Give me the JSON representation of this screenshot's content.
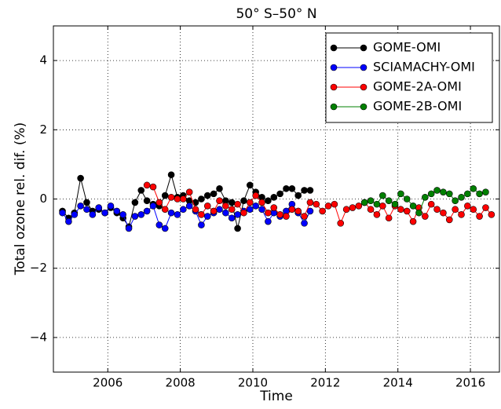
{
  "chart_data": {
    "type": "line",
    "title": "50° S–50° N",
    "xlabel": "Time",
    "ylabel": "Total ozone rel. dif. (%)",
    "xlim": [
      2004.5,
      2016.8
    ],
    "ylim": [
      -5,
      5
    ],
    "xticks": [
      2006,
      2008,
      2010,
      2012,
      2014,
      2016
    ],
    "yticks": [
      {
        "value": -4,
        "label": "−4"
      },
      {
        "value": -2,
        "label": "−2"
      },
      0,
      2,
      4
    ],
    "grid": true,
    "legend": "upper right",
    "series": [
      {
        "name": "GOME-OMI",
        "color": "#000000",
        "x": [
          2004.75,
          2004.92,
          2005.08,
          2005.25,
          2005.42,
          2005.58,
          2005.75,
          2005.92,
          2006.08,
          2006.25,
          2006.42,
          2006.58,
          2006.75,
          2006.92,
          2007.08,
          2007.25,
          2007.42,
          2007.58,
          2007.75,
          2007.92,
          2008.08,
          2008.25,
          2008.42,
          2008.58,
          2008.75,
          2008.92,
          2009.08,
          2009.25,
          2009.42,
          2009.58,
          2009.75,
          2009.92,
          2010.08,
          2010.25,
          2010.42,
          2010.58,
          2010.75,
          2010.92,
          2011.08,
          2011.25,
          2011.42,
          2011.58
        ],
        "values": [
          -0.35,
          -0.55,
          -0.4,
          0.6,
          -0.1,
          -0.35,
          -0.3,
          -0.4,
          -0.25,
          -0.4,
          -0.55,
          -0.8,
          -0.1,
          0.25,
          -0.05,
          -0.15,
          -0.2,
          0.1,
          0.7,
          0.05,
          0.1,
          -0.05,
          -0.1,
          0.0,
          0.1,
          0.15,
          0.3,
          -0.05,
          -0.1,
          -0.85,
          -0.05,
          0.4,
          0.2,
          0.05,
          -0.05,
          0.05,
          0.15,
          0.3,
          0.3,
          0.1,
          0.25,
          0.25
        ]
      },
      {
        "name": "SCIAMACHY-OMI",
        "color": "#0000ff",
        "x": [
          2004.75,
          2004.92,
          2005.08,
          2005.25,
          2005.42,
          2005.58,
          2005.75,
          2005.92,
          2006.08,
          2006.25,
          2006.42,
          2006.58,
          2006.75,
          2006.92,
          2007.08,
          2007.25,
          2007.42,
          2007.58,
          2007.75,
          2007.92,
          2008.08,
          2008.25,
          2008.42,
          2008.58,
          2008.75,
          2008.92,
          2009.08,
          2009.25,
          2009.42,
          2009.58,
          2009.75,
          2009.92,
          2010.08,
          2010.25,
          2010.42,
          2010.58,
          2010.75,
          2010.92,
          2011.08,
          2011.25,
          2011.42,
          2011.58
        ],
        "values": [
          -0.4,
          -0.65,
          -0.45,
          -0.2,
          -0.3,
          -0.45,
          -0.25,
          -0.4,
          -0.2,
          -0.35,
          -0.45,
          -0.85,
          -0.5,
          -0.45,
          -0.35,
          -0.2,
          -0.75,
          -0.85,
          -0.4,
          -0.45,
          -0.3,
          -0.2,
          -0.35,
          -0.75,
          -0.5,
          -0.4,
          -0.3,
          -0.4,
          -0.55,
          -0.45,
          -0.35,
          -0.3,
          -0.2,
          -0.3,
          -0.65,
          -0.4,
          -0.5,
          -0.35,
          -0.15,
          -0.4,
          -0.7,
          -0.35
        ]
      },
      {
        "name": "GOME-2A-OMI",
        "color": "#ff0000",
        "x": [
          2007.08,
          2007.25,
          2007.42,
          2007.58,
          2007.75,
          2007.92,
          2008.08,
          2008.25,
          2008.42,
          2008.58,
          2008.75,
          2008.92,
          2009.08,
          2009.25,
          2009.42,
          2009.58,
          2009.75,
          2009.92,
          2010.08,
          2010.25,
          2010.42,
          2010.58,
          2010.75,
          2010.92,
          2011.08,
          2011.25,
          2011.42,
          2011.58,
          2011.75,
          2011.92,
          2012.08,
          2012.25,
          2012.42,
          2012.58,
          2012.75,
          2012.92,
          2013.08,
          2013.25,
          2013.42,
          2013.58,
          2013.75,
          2013.92,
          2014.08,
          2014.25,
          2014.42,
          2014.58,
          2014.75,
          2014.92,
          2015.08,
          2015.25,
          2015.42,
          2015.58,
          2015.75,
          2015.92,
          2016.08,
          2016.25,
          2016.42,
          2016.58
        ],
        "values": [
          0.4,
          0.35,
          -0.1,
          -0.3,
          0.05,
          0.0,
          0.0,
          0.2,
          -0.3,
          -0.45,
          -0.2,
          -0.35,
          -0.05,
          -0.2,
          -0.3,
          -0.15,
          -0.4,
          -0.1,
          0.1,
          -0.1,
          -0.4,
          -0.25,
          -0.45,
          -0.5,
          -0.3,
          -0.35,
          -0.5,
          -0.1,
          -0.15,
          -0.35,
          -0.2,
          -0.15,
          -0.7,
          -0.3,
          -0.25,
          -0.2,
          -0.1,
          -0.3,
          -0.45,
          -0.2,
          -0.55,
          -0.2,
          -0.3,
          -0.35,
          -0.65,
          -0.25,
          -0.5,
          -0.15,
          -0.3,
          -0.4,
          -0.6,
          -0.3,
          -0.45,
          -0.2,
          -0.3,
          -0.5,
          -0.25,
          -0.45
        ]
      },
      {
        "name": "GOME-2B-OMI",
        "color": "#008000",
        "x": [
          2013.08,
          2013.25,
          2013.42,
          2013.58,
          2013.75,
          2013.92,
          2014.08,
          2014.25,
          2014.42,
          2014.58,
          2014.75,
          2014.92,
          2015.08,
          2015.25,
          2015.42,
          2015.58,
          2015.75,
          2015.92,
          2016.08,
          2016.25,
          2016.42
        ],
        "values": [
          -0.1,
          -0.05,
          -0.15,
          0.1,
          -0.05,
          -0.15,
          0.15,
          0.0,
          -0.2,
          -0.4,
          0.05,
          0.15,
          0.25,
          0.2,
          0.15,
          -0.05,
          0.05,
          0.15,
          0.3,
          0.15,
          0.2
        ]
      }
    ]
  }
}
